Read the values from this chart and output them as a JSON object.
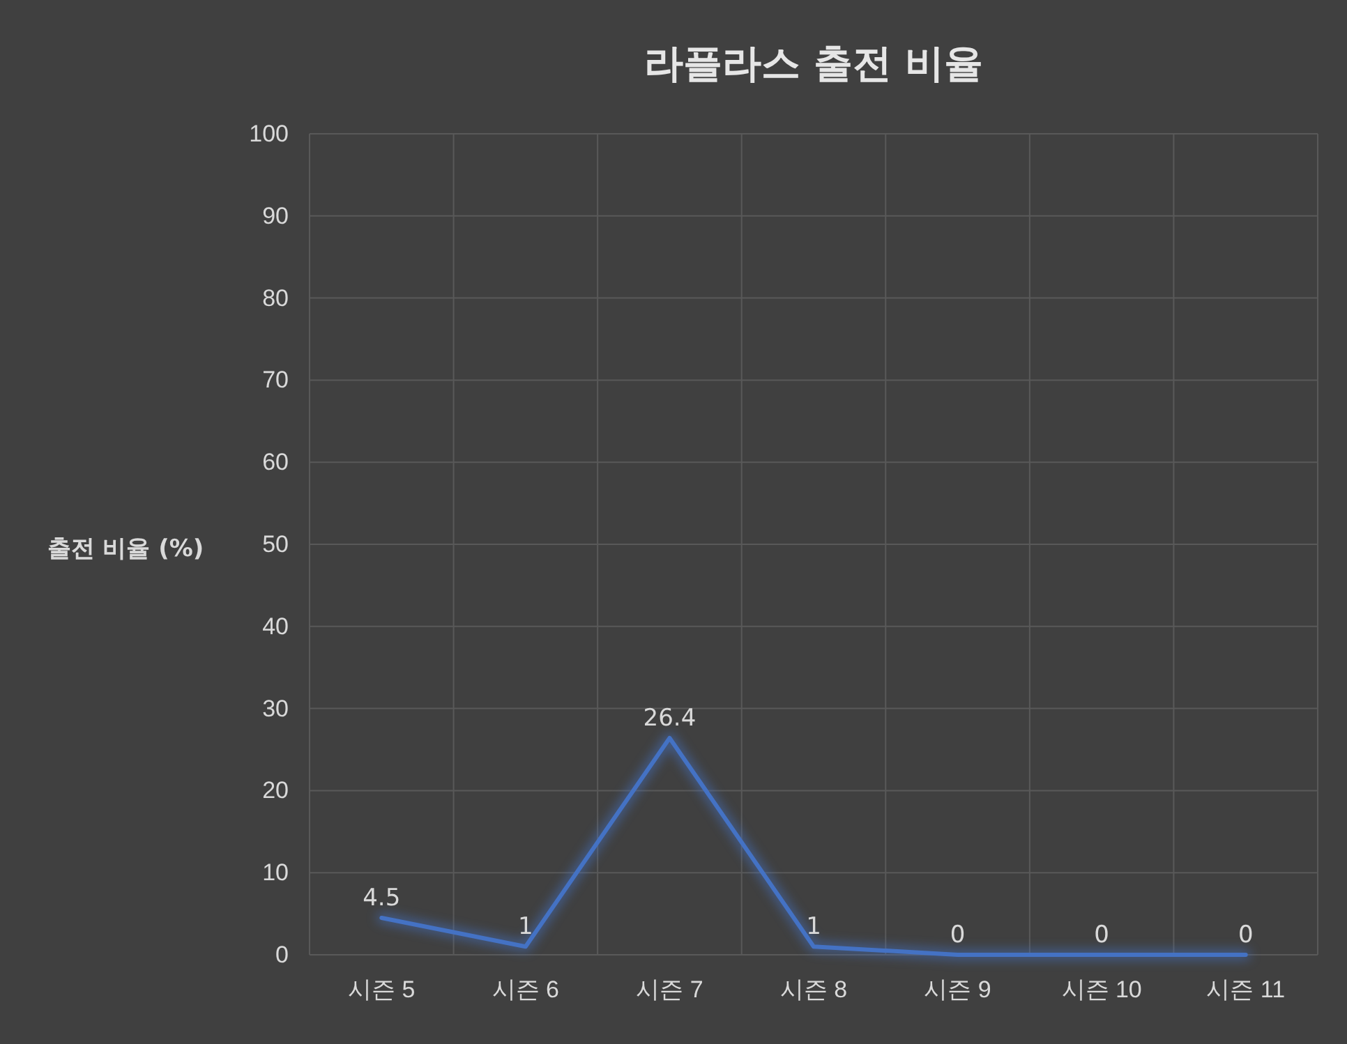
{
  "chart_data": {
    "type": "line",
    "title": "라플라스 출전 비율",
    "ylabel": "출전 비율 (%)",
    "categories": [
      "시즌 5",
      "시즌 6",
      "시즌 7",
      "시즌 8",
      "시즌 9",
      "시즌 10",
      "시즌 11"
    ],
    "series": [
      {
        "color": "#4472c4",
        "values": [
          4.5,
          1,
          26.4,
          1,
          0,
          0,
          0
        ]
      }
    ],
    "ylim": [
      0,
      100
    ],
    "yticks": [
      0,
      10,
      20,
      30,
      40,
      50,
      60,
      70,
      80,
      90,
      100
    ],
    "grid": true,
    "data_labels": true
  }
}
